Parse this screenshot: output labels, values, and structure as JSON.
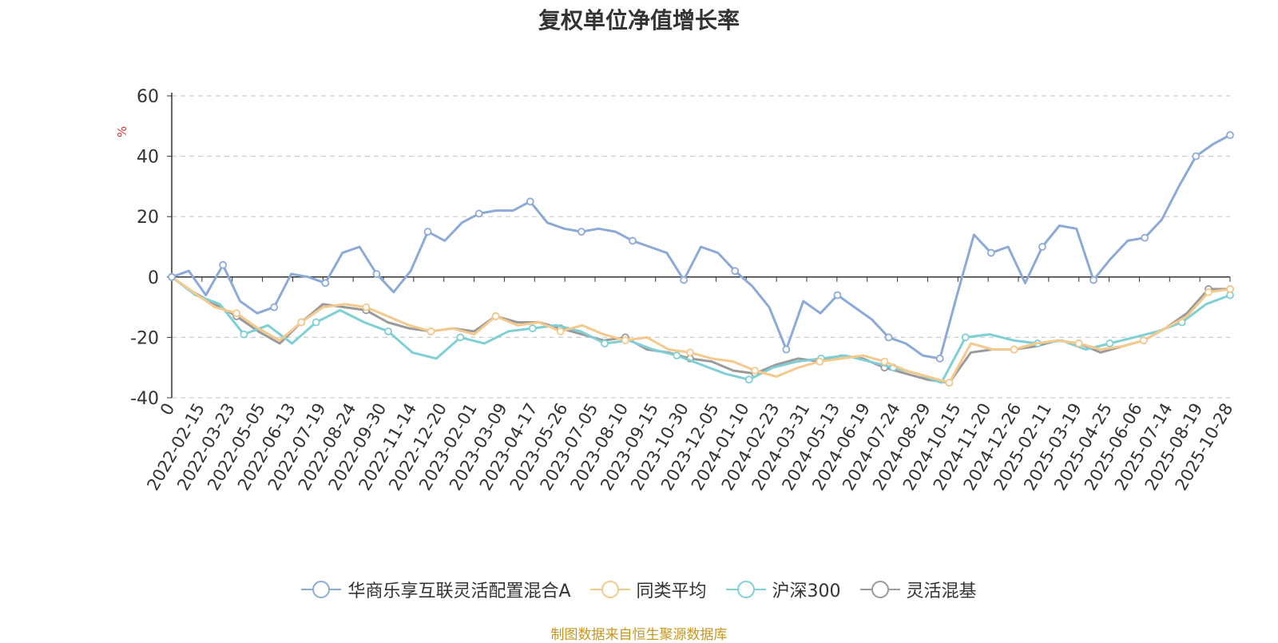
{
  "chart_data": {
    "type": "line",
    "title": "复权单位净值增长率",
    "ylabel": "%",
    "xlabel": "",
    "ylim": [
      -40,
      60
    ],
    "yticks": [
      -40,
      -20,
      0,
      20,
      40,
      60
    ],
    "grid": true,
    "legend_placement": "bottom",
    "x_tick_labels": [
      "0",
      "2022-02-15",
      "2022-03-23",
      "2022-05-05",
      "2022-06-13",
      "2022-07-19",
      "2022-08-24",
      "2022-09-30",
      "2022-11-14",
      "2022-12-20",
      "2023-02-01",
      "2023-03-09",
      "2023-04-17",
      "2023-05-26",
      "2023-07-05",
      "2023-08-10",
      "2023-09-15",
      "2023-10-30",
      "2023-12-05",
      "2024-01-10",
      "2024-02-23",
      "2024-03-31",
      "2024-05-13",
      "2024-06-19",
      "2024-07-24",
      "2024-08-29",
      "2024-10-15",
      "2024-11-20",
      "2024-12-26",
      "2025-02-11",
      "2025-03-19",
      "2025-04-25",
      "2025-06-06",
      "2025-07-14",
      "2025-08-19",
      "2025-10-28"
    ],
    "series": [
      {
        "name": "华商乐享互联灵活配置混合A",
        "color": "#8caad8",
        "values": [
          0,
          2,
          -6,
          4,
          -8,
          -12,
          -10,
          1,
          0,
          -2,
          8,
          10,
          1,
          -5,
          2,
          15,
          12,
          18,
          21,
          22,
          22,
          25,
          18,
          16,
          15,
          16,
          15,
          12,
          10,
          8,
          -1,
          10,
          8,
          2,
          -3,
          -10,
          -24,
          -8,
          -12,
          -6,
          -10,
          -14,
          -20,
          -22,
          -26,
          -27,
          -6,
          14,
          8,
          10,
          -2,
          10,
          17,
          16,
          -1,
          6,
          12,
          13,
          19,
          30,
          40,
          44,
          47
        ]
      },
      {
        "name": "同类平均",
        "color": "#f5c88c",
        "values": [
          0,
          -5,
          -10,
          -12,
          -17,
          -21,
          -15,
          -10,
          -9,
          -10,
          -13,
          -16,
          -18,
          -17,
          -19,
          -13,
          -16,
          -15,
          -18,
          -16,
          -19,
          -21,
          -20,
          -24,
          -25,
          -27,
          -28,
          -31,
          -33,
          -30,
          -28,
          -27,
          -26,
          -28,
          -31,
          -33,
          -35,
          -22,
          -24,
          -24,
          -22,
          -21,
          -22,
          -24,
          -23,
          -21,
          -17,
          -13,
          -5,
          -4
        ]
      },
      {
        "name": "沪深300",
        "color": "#7fcfd6",
        "values": [
          0,
          -6,
          -9,
          -19,
          -16,
          -22,
          -15,
          -11,
          -15,
          -18,
          -25,
          -27,
          -20,
          -22,
          -18,
          -17,
          -16,
          -18,
          -22,
          -21,
          -24,
          -26,
          -29,
          -32,
          -34,
          -30,
          -28,
          -27,
          -26,
          -28,
          -30,
          -32,
          -35,
          -20,
          -19,
          -21,
          -22,
          -21,
          -24,
          -22,
          -20,
          -18,
          -15,
          -9,
          -6
        ]
      },
      {
        "name": "灵活混基",
        "color": "#9a9a9a",
        "values": [
          0,
          -5,
          -9,
          -13,
          -18,
          -22,
          -15,
          -9,
          -10,
          -11,
          -15,
          -17,
          -18,
          -17,
          -18,
          -13,
          -15,
          -15,
          -17,
          -19,
          -21,
          -20,
          -24,
          -25,
          -27,
          -28,
          -31,
          -32,
          -29,
          -27,
          -28,
          -26,
          -27,
          -30,
          -32,
          -34,
          -35,
          -25,
          -24,
          -24,
          -23,
          -21,
          -22,
          -25,
          -23,
          -21,
          -17,
          -12,
          -4,
          -4
        ]
      }
    ]
  },
  "footer": {
    "source": "制图数据来自恒生聚源数据库"
  }
}
